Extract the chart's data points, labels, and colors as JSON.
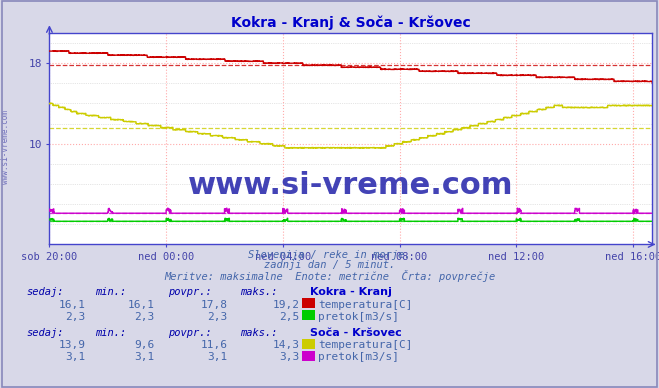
{
  "title": "Kokra - Kranj & Soča - Kršovec",
  "subtitle_lines": [
    "Slovenija / reke in morje.",
    "zadnji dan / 5 minut.",
    "Meritve: maksimalne  Enote: metrične  Črta: povprečje"
  ],
  "fig_bg_color": "#d8d8e8",
  "plot_bg_color": "#ffffff",
  "x_tick_labels": [
    "sob 20:00",
    "ned 00:00",
    "ned 04:00",
    "ned 08:00",
    "ned 12:00",
    "ned 16:00"
  ],
  "x_tick_positions": [
    0,
    240,
    480,
    720,
    960,
    1200
  ],
  "total_points": 1241,
  "ylim": [
    0,
    21
  ],
  "yticks": [
    10,
    18
  ],
  "grid_color": "#ffaaaa",
  "grid_color2": "#cccccc",
  "kokra_temp_color": "#cc0000",
  "soca_temp_color": "#cccc00",
  "kokra_pretok_color": "#00cc00",
  "soca_pretok_color": "#cc00cc",
  "ref_line_kokra": 17.8,
  "ref_line_soca": 11.6,
  "kokra_pretok_val": 2.3,
  "soca_pretok_val": 3.1,
  "watermark": "www.si-vreme.com",
  "watermark_color": "#2222aa",
  "axis_color": "#4444cc",
  "tick_color": "#4444aa",
  "title_color": "#0000cc",
  "table_header_color": "#0000aa",
  "table_color": "#4466aa",
  "table_bold_color": "#0000cc",
  "station1_label": "Kokra - Kranj",
  "station2_label": "Soča - Kršovec",
  "label_temp": "temperatura[C]",
  "label_pretok": "pretok[m3/s]",
  "stat1_sedaj": "16,1",
  "stat1_min": "16,1",
  "stat1_povpr": "17,8",
  "stat1_maks": "19,2",
  "stat1_pretok_sedaj": "2,3",
  "stat1_pretok_min": "2,3",
  "stat1_pretok_povpr": "2,3",
  "stat1_pretok_maks": "2,5",
  "stat2_sedaj": "13,9",
  "stat2_min": "9,6",
  "stat2_povpr": "11,6",
  "stat2_maks": "14,3",
  "stat2_pretok_sedaj": "3,1",
  "stat2_pretok_min": "3,1",
  "stat2_pretok_povpr": "3,1",
  "stat2_pretok_maks": "3,3"
}
